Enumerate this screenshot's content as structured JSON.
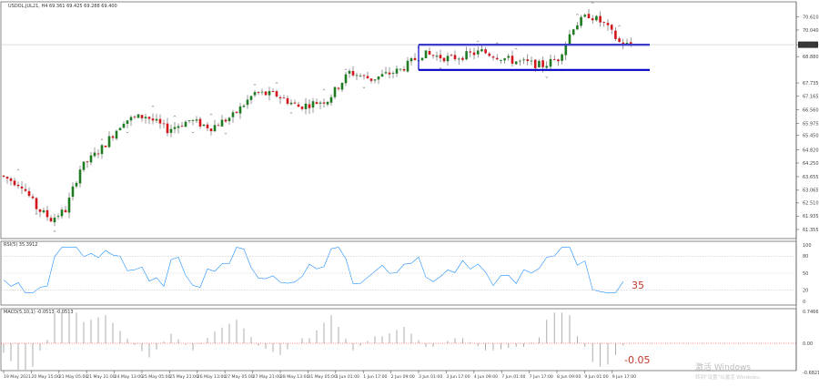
{
  "chart_data": [
    {
      "type": "candlestick",
      "title": "USDOL.JUL21, H4  69.361 69.425 69.288 69.400",
      "colors": {
        "up": "#1e7b22",
        "down": "#d3151b",
        "channel": "#0000c8",
        "price_line": "#c8c8c8"
      },
      "ylim": [
        61.355,
        70.95
      ],
      "y_ticks": [
        "70.610",
        "70.040",
        "69.400",
        "68.880",
        "67.735",
        "67.165",
        "66.560",
        "65.975",
        "65.450",
        "64.820",
        "64.250",
        "63.655",
        "63.065",
        "62.510",
        "61.935",
        "61.355"
      ],
      "current_price": "69.400",
      "current_price_value": 69.4,
      "channel": {
        "upper": 69.4,
        "lower": 68.3,
        "from_bar": 114,
        "to_bar": 143
      },
      "fractals": [
        {
          "bar": 4,
          "type": "up"
        },
        {
          "bar": 9,
          "type": "down"
        },
        {
          "bar": 14,
          "type": "down"
        },
        {
          "bar": 27,
          "type": "up"
        },
        {
          "bar": 34,
          "type": "down"
        },
        {
          "bar": 41,
          "type": "up"
        },
        {
          "bar": 47,
          "type": "up"
        },
        {
          "bar": 52,
          "type": "down"
        },
        {
          "bar": 57,
          "type": "up"
        },
        {
          "bar": 61,
          "type": "down"
        },
        {
          "bar": 69,
          "type": "up"
        },
        {
          "bar": 75,
          "type": "up"
        },
        {
          "bar": 79,
          "type": "down"
        },
        {
          "bar": 88,
          "type": "up"
        },
        {
          "bar": 94,
          "type": "up"
        },
        {
          "bar": 99,
          "type": "down"
        },
        {
          "bar": 114,
          "type": "up"
        },
        {
          "bar": 120,
          "type": "down"
        },
        {
          "bar": 130,
          "type": "up"
        },
        {
          "bar": 135,
          "type": "up"
        },
        {
          "bar": 140,
          "type": "up"
        },
        {
          "bar": 148,
          "type": "down"
        },
        {
          "bar": 152,
          "type": "down"
        },
        {
          "bar": 156,
          "type": "up"
        },
        {
          "bar": 160,
          "type": "up"
        },
        {
          "bar": 167,
          "type": "up"
        }
      ]
    },
    {
      "type": "line",
      "title": "RSI(5) 35.3912",
      "colors": {
        "line": "#1e90ff"
      },
      "ylim": [
        0,
        100
      ],
      "y_ticks": [
        "100",
        "80",
        "50",
        "20",
        "0"
      ],
      "levels": [
        80,
        50,
        20
      ],
      "annotation": "35"
    },
    {
      "type": "histogram",
      "title": "MACD(5,10,1) -0.0513 -0.0513",
      "colors": {
        "bars": "#9a9a9a",
        "zero": "#ff0000"
      },
      "ylim": [
        -0.6821,
        0.7466
      ],
      "y_ticks": [
        "0.7466",
        "0.00",
        "-0.6821"
      ],
      "annotation": "-0.05"
    }
  ],
  "x_labels": [
    "19 May 2021",
    "20 May 15:00",
    "21 May 05:00",
    "21 May 21:00",
    "24 May 13:00",
    "25 May 05:00",
    "25 May 21:00",
    "26 May 13:00",
    "27 May 05:00",
    "27 May 21:00",
    "28 May 13:00",
    "31 May 05:00",
    "1 Jun 01:00",
    "1 Jun 17:00",
    "2 Jun 09:00",
    "3 Jun 01:00",
    "3 Jun 17:00",
    "4 Jun 09:00",
    "7 Jun 01:00",
    "7 Jun 17:00",
    "8 Jun 09:00",
    "9 Jun 01:00",
    "9 Jun 17:00"
  ],
  "watermark": {
    "line1": "激活 Windows",
    "line2": "转到\"设置\"以激活 Windows。"
  }
}
